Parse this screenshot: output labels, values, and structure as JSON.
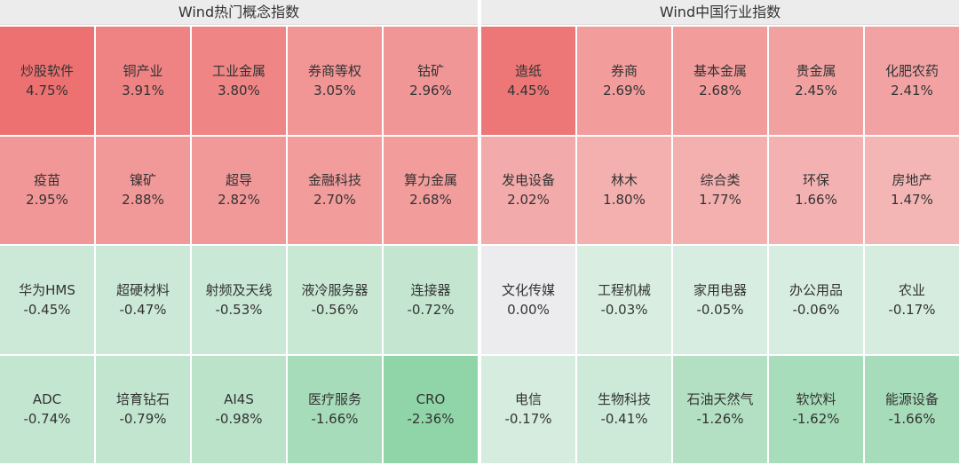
{
  "panels": [
    {
      "title": "Wind热门概念指数",
      "cells": [
        {
          "name": "炒股软件",
          "value": "4.75%"
        },
        {
          "name": "铜产业",
          "value": "3.91%"
        },
        {
          "name": "工业金属",
          "value": "3.80%"
        },
        {
          "name": "券商等权",
          "value": "3.05%"
        },
        {
          "name": "钴矿",
          "value": "2.96%"
        },
        {
          "name": "疫苗",
          "value": "2.95%"
        },
        {
          "name": "镍矿",
          "value": "2.88%"
        },
        {
          "name": "超导",
          "value": "2.82%"
        },
        {
          "name": "金融科技",
          "value": "2.70%"
        },
        {
          "name": "算力金属",
          "value": "2.68%"
        },
        {
          "name": "华为HMS",
          "value": "-0.45%"
        },
        {
          "name": "超硬材料",
          "value": "-0.47%"
        },
        {
          "name": "射频及天线",
          "value": "-0.53%"
        },
        {
          "name": "液冷服务器",
          "value": "-0.56%"
        },
        {
          "name": "连接器",
          "value": "-0.72%"
        },
        {
          "name": "ADC",
          "value": "-0.74%"
        },
        {
          "name": "培育钻石",
          "value": "-0.79%"
        },
        {
          "name": "AI4S",
          "value": "-0.98%"
        },
        {
          "name": "医疗服务",
          "value": "-1.66%"
        },
        {
          "name": "CRO",
          "value": "-2.36%"
        }
      ]
    },
    {
      "title": "Wind中国行业指数",
      "cells": [
        {
          "name": "造纸",
          "value": "4.45%"
        },
        {
          "name": "券商",
          "value": "2.69%"
        },
        {
          "name": "基本金属",
          "value": "2.68%"
        },
        {
          "name": "贵金属",
          "value": "2.45%"
        },
        {
          "name": "化肥农药",
          "value": "2.41%"
        },
        {
          "name": "发电设备",
          "value": "2.02%"
        },
        {
          "name": "林木",
          "value": "1.80%"
        },
        {
          "name": "综合类",
          "value": "1.77%"
        },
        {
          "name": "环保",
          "value": "1.66%"
        },
        {
          "name": "房地产",
          "value": "1.47%"
        },
        {
          "name": "文化传媒",
          "value": "0.00%"
        },
        {
          "name": "工程机械",
          "value": "-0.03%"
        },
        {
          "name": "家用电器",
          "value": "-0.05%"
        },
        {
          "name": "办公用品",
          "value": "-0.06%"
        },
        {
          "name": "农业",
          "value": "-0.17%"
        },
        {
          "name": "电信",
          "value": "-0.17%"
        },
        {
          "name": "生物科技",
          "value": "-0.41%"
        },
        {
          "name": "石油天然气",
          "value": "-1.26%"
        },
        {
          "name": "软饮料",
          "value": "-1.62%"
        },
        {
          "name": "能源设备",
          "value": "-1.66%"
        }
      ]
    }
  ]
}
